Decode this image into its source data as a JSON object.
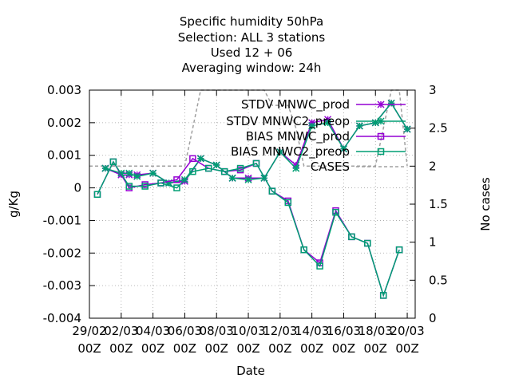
{
  "title_lines": [
    "Specific humidity 50hPa",
    "Selection: ALL       3 stations",
    "Used  12 + 06",
    "Averaging window: 24h"
  ],
  "chart_data": {
    "type": "line",
    "xlabel": "Date",
    "ylabel": "g/Kg",
    "y2label": "No cases",
    "ylim": [
      -0.004,
      0.003
    ],
    "y2lim": [
      0,
      3
    ],
    "xlim": [
      "29/02 00Z",
      "20/03 12Z"
    ],
    "grid": true,
    "legend_position": "top-right",
    "y_ticks": [
      "-0.004",
      "-0.003",
      "-0.002",
      "-0.001",
      "0",
      "0.001",
      "0.002",
      "0.003"
    ],
    "y2_ticks": [
      "0",
      "0.5",
      "1",
      "1.5",
      "2",
      "2.5",
      "3"
    ],
    "x_ticks": [
      {
        "day": 0,
        "line1": "29/02",
        "line2": "00Z"
      },
      {
        "day": 2,
        "line1": "02/03",
        "line2": "00Z"
      },
      {
        "day": 4,
        "line1": "04/03",
        "line2": "00Z"
      },
      {
        "day": 6,
        "line1": "06/03",
        "line2": "00Z"
      },
      {
        "day": 8,
        "line1": "08/03",
        "line2": "00Z"
      },
      {
        "day": 10,
        "line1": "10/03",
        "line2": "00Z"
      },
      {
        "day": 12,
        "line1": "12/03",
        "line2": "00Z"
      },
      {
        "day": 14,
        "line1": "14/03",
        "line2": "00Z"
      },
      {
        "day": 16,
        "line1": "16/03",
        "line2": "00Z"
      },
      {
        "day": 18,
        "line1": "18/03",
        "line2": "00Z"
      },
      {
        "day": 20,
        "line1": "20/03",
        "line2": "00Z"
      }
    ],
    "series": [
      {
        "name": "STDV MNWC_prod",
        "legend_label": "STDV MNWC_prod",
        "axis": "y1",
        "color": "#9400d3",
        "marker": "star",
        "x": [
          1.0,
          2.0,
          2.5,
          3.0,
          4.0,
          5.0,
          6.0,
          7.0,
          8.0,
          9.0,
          10.0,
          11.0,
          12.0,
          13.0,
          14.0,
          15.0,
          16.0,
          17.0,
          18.0,
          19.0,
          20.0
        ],
        "values": [
          0.0006,
          0.0004,
          0.0004,
          0.0004,
          0.00045,
          0.00015,
          0.0002,
          0.0009,
          0.0007,
          0.0003,
          0.0003,
          0.0003,
          0.0011,
          0.0007,
          0.002,
          0.0021,
          0.0012,
          0.0019,
          0.002,
          0.0026,
          0.0018
        ]
      },
      {
        "name": "STDV MNWC2_preop",
        "legend_label": "STDV MNWC2_preop",
        "axis": "y1",
        "color": "#009e73",
        "marker": "star",
        "x": [
          1.0,
          2.0,
          2.5,
          3.0,
          4.0,
          5.0,
          6.0,
          7.0,
          8.0,
          9.0,
          10.0,
          11.0,
          12.0,
          13.0,
          14.0,
          15.0,
          16.0,
          17.0,
          18.0,
          19.0,
          20.0
        ],
        "values": [
          0.0006,
          0.00045,
          0.00045,
          0.00035,
          0.00045,
          0.00015,
          0.00025,
          0.0009,
          0.0007,
          0.0003,
          0.00025,
          0.0003,
          0.0011,
          0.0006,
          0.0019,
          0.002,
          0.0012,
          0.0019,
          0.002,
          0.0026,
          0.0018
        ]
      },
      {
        "name": "BIAS MNWC_prod",
        "legend_label": "BIAS MNWC_prod",
        "axis": "y1",
        "color": "#9400d3",
        "marker": "square",
        "x": [
          0.5,
          1.5,
          2.5,
          3.5,
          4.5,
          5.5,
          6.5,
          7.5,
          8.5,
          9.5,
          10.5,
          11.5,
          12.5,
          13.5,
          14.5,
          15.5,
          16.5,
          17.5,
          18.5,
          19.5
        ],
        "values": [
          -0.0002,
          0.0008,
          0.0,
          0.0001,
          0.00015,
          0.00025,
          0.0009,
          0.0006,
          0.0005,
          0.00055,
          0.00075,
          -0.0001,
          -0.0004,
          -0.0019,
          -0.0023,
          -0.0007,
          -0.0015,
          -0.0017,
          -0.0033,
          -0.0019
        ]
      },
      {
        "name": "BIAS MNWC2_preop",
        "legend_label": "BIAS MNWC2_preop",
        "axis": "y1",
        "color": "#009e73",
        "marker": "square",
        "x": [
          0.5,
          1.5,
          2.5,
          3.5,
          4.5,
          5.5,
          6.5,
          7.5,
          8.5,
          9.5,
          10.5,
          11.5,
          12.5,
          13.5,
          14.5,
          15.5,
          16.5,
          17.5,
          18.5,
          19.5
        ],
        "values": [
          -0.0002,
          0.0008,
          5e-05,
          5e-05,
          0.00015,
          0.0,
          0.0005,
          0.0006,
          0.0005,
          0.0006,
          0.00075,
          -0.0001,
          -0.00045,
          -0.0019,
          -0.0024,
          -0.00075,
          -0.0015,
          -0.0017,
          -0.0033,
          -0.0019
        ]
      },
      {
        "name": "CASES",
        "legend_label": "CASES",
        "axis": "y2",
        "color": "#a0a0a0",
        "marker": "none",
        "dashed": true,
        "x": [
          0.0,
          6.0,
          6.5,
          7.0,
          11.0,
          11.5,
          12.5,
          13.0,
          13.5,
          18.0,
          18.5,
          19.0,
          19.5,
          20.0
        ],
        "values": [
          2.0,
          2.0,
          2.5,
          3.0,
          3.0,
          2.8,
          2.8,
          2.5,
          2.0,
          2.0,
          2.5,
          3.0,
          3.0,
          2.0
        ]
      }
    ]
  }
}
